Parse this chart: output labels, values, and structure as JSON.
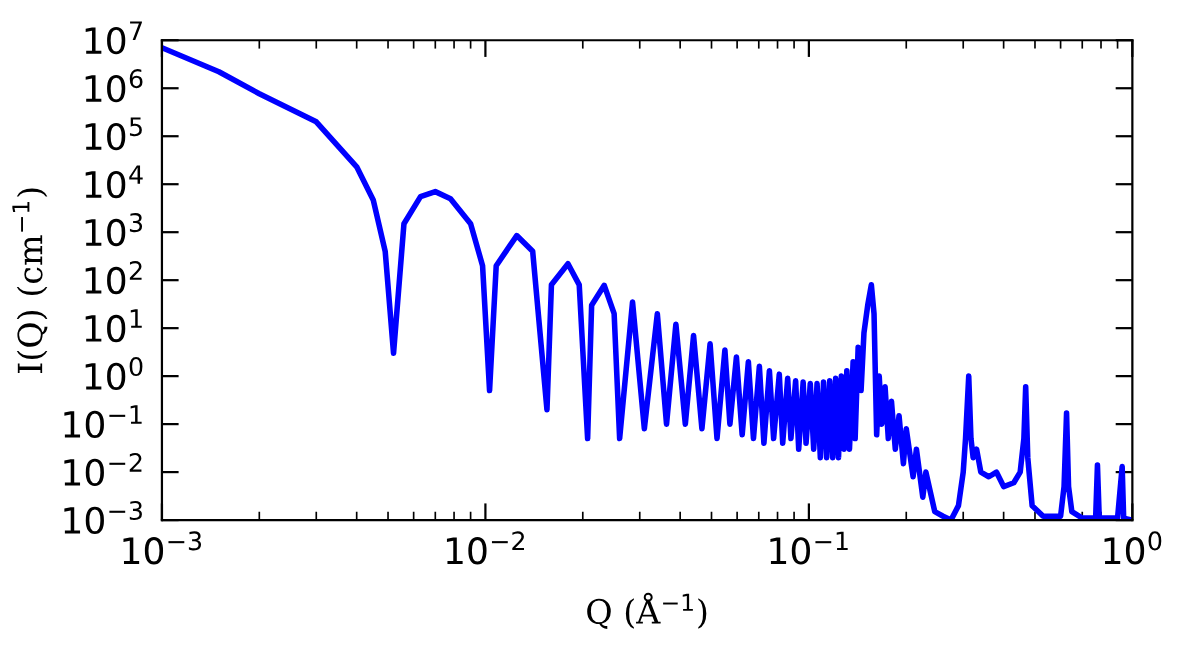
{
  "chart_data": {
    "type": "line",
    "xlabel": "Q (Å$^{−1}$)",
    "ylabel": "I(Q) (cm$^{−1}$)",
    "log": "xy",
    "grid": false,
    "legend": false,
    "marker": "none",
    "line_style": "solid",
    "xlim": [
      0.001,
      1
    ],
    "ylim": [
      0.001,
      10000000
    ],
    "xticks": [
      {
        "value": 0.001,
        "label": "10$^{−3}$"
      },
      {
        "value": 0.01,
        "label": "10$^{−2}$"
      },
      {
        "value": 0.1,
        "label": "10$^{−1}$"
      },
      {
        "value": 1,
        "label": "10$^{0}$"
      }
    ],
    "yticks": [
      {
        "value": 0.001,
        "label": "10$^{−3}$"
      },
      {
        "value": 0.01,
        "label": "10$^{−2}$"
      },
      {
        "value": 0.1,
        "label": "10$^{−1}$"
      },
      {
        "value": 1,
        "label": "10$^{0}$"
      },
      {
        "value": 10,
        "label": "10$^{1}$"
      },
      {
        "value": 100,
        "label": "10$^{2}$"
      },
      {
        "value": 1000,
        "label": "10$^{3}$"
      },
      {
        "value": 10000,
        "label": "10$^{4}$"
      },
      {
        "value": 100000,
        "label": "10$^{5}$"
      },
      {
        "value": 1000000,
        "label": "10$^{6}$"
      },
      {
        "value": 10000000,
        "label": "10$^{7}$"
      }
    ],
    "x": [
      0.001,
      0.0015,
      0.002,
      0.003,
      0.004,
      0.0045,
      0.0049,
      0.0052,
      0.0056,
      0.0063,
      0.007,
      0.0078,
      0.009,
      0.0098,
      0.0103,
      0.0108,
      0.0125,
      0.014,
      0.0155,
      0.016,
      0.018,
      0.0195,
      0.0207,
      0.0213,
      0.0233,
      0.025,
      0.026,
      0.0285,
      0.031,
      0.034,
      0.0363,
      0.0388,
      0.0415,
      0.044,
      0.0467,
      0.0495,
      0.052,
      0.055,
      0.057,
      0.0597,
      0.0622,
      0.065,
      0.0674,
      0.0703,
      0.0726,
      0.0755,
      0.0778,
      0.081,
      0.083,
      0.086,
      0.088,
      0.091,
      0.093,
      0.096,
      0.098,
      0.101,
      0.1035,
      0.106,
      0.1085,
      0.111,
      0.1135,
      0.116,
      0.1185,
      0.121,
      0.1235,
      0.126,
      0.1285,
      0.131,
      0.1335,
      0.137,
      0.139,
      0.142,
      0.145,
      0.148,
      0.152,
      0.156,
      0.159,
      0.162,
      0.165,
      0.168,
      0.172,
      0.176,
      0.18,
      0.185,
      0.19,
      0.196,
      0.2,
      0.21,
      0.215,
      0.225,
      0.23,
      0.245,
      0.26,
      0.275,
      0.29,
      0.3,
      0.305,
      0.312,
      0.317,
      0.322,
      0.33,
      0.34,
      0.36,
      0.38,
      0.4,
      0.43,
      0.45,
      0.462,
      0.468,
      0.475,
      0.49,
      0.53,
      0.6,
      0.615,
      0.626,
      0.635,
      0.65,
      0.7,
      0.77,
      0.78,
      0.79,
      0.9,
      0.93,
      0.94,
      1.0
    ],
    "series": [
      {
        "color": "#0000ff",
        "values": [
          7000000,
          2200000,
          770000,
          200000,
          23000,
          4700,
          400,
          3,
          1500,
          5500,
          7000,
          5000,
          1500,
          200,
          0.5,
          200,
          850,
          400,
          0.2,
          80,
          220,
          80,
          0.05,
          30,
          78,
          20,
          0.05,
          35,
          0.08,
          20,
          0.1,
          12,
          0.1,
          7,
          0.08,
          4.7,
          0.05,
          3.5,
          0.1,
          2.5,
          0.06,
          2,
          0.05,
          1.6,
          0.04,
          1.3,
          0.05,
          1.1,
          0.04,
          0.9,
          0.05,
          0.8,
          0.03,
          0.75,
          0.04,
          0.7,
          0.03,
          0.7,
          0.02,
          0.75,
          0.02,
          0.8,
          0.02,
          0.9,
          0.02,
          1.0,
          0.03,
          1.3,
          0.03,
          2,
          0.05,
          4,
          0.5,
          8,
          30,
          80,
          20,
          0.06,
          1,
          0.1,
          0.6,
          0.05,
          0.3,
          0.03,
          0.15,
          0.015,
          0.08,
          0.008,
          0.03,
          0.003,
          0.01,
          0.0015,
          0.0012,
          0.001,
          0.002,
          0.01,
          0.05,
          1,
          0.05,
          0.02,
          0.03,
          0.01,
          0.008,
          0.01,
          0.005,
          0.006,
          0.01,
          0.05,
          0.6,
          0.02,
          0.002,
          0.0012,
          0.0012,
          0.005,
          0.17,
          0.005,
          0.0015,
          0.0011,
          0.0011,
          0.014,
          0.0011,
          0.0011,
          0.013,
          0.0011,
          0.001
        ]
      }
    ]
  }
}
